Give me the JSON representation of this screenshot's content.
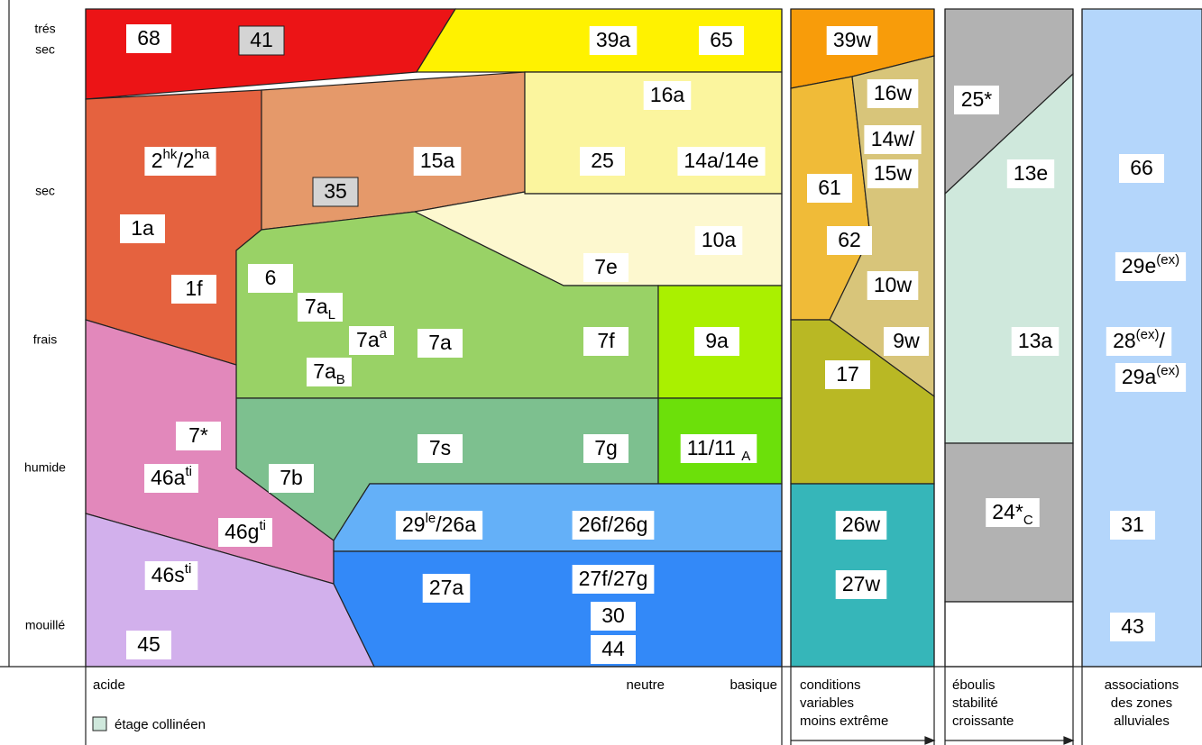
{
  "moisture_levels": [
    [
      "trés",
      "sec"
    ],
    [
      "sec"
    ],
    [
      "frais"
    ],
    [
      "humide"
    ],
    [
      "mouillé"
    ]
  ],
  "ph_axis": [
    "acide",
    "neutre",
    "basique"
  ],
  "panel_captions": [
    [
      "conditions",
      "variables",
      "moins extrême"
    ],
    [
      "éboulis",
      "stabilité",
      "croissante"
    ],
    [
      "associations",
      "des zones",
      "alluviales"
    ]
  ],
  "legend": "étage collinéen",
  "labels": [
    {
      "parts": [
        {
          "t": "68"
        }
      ]
    },
    {
      "parts": [
        {
          "t": "41"
        }
      ]
    },
    {
      "parts": [
        {
          "t": "39a"
        }
      ]
    },
    {
      "parts": [
        {
          "t": "65"
        }
      ]
    },
    {
      "parts": [
        {
          "t": "16a"
        }
      ]
    },
    {
      "parts": [
        {
          "t": "2"
        },
        {
          "sup": "hk"
        },
        {
          "t": "/2"
        },
        {
          "sup": "ha"
        }
      ]
    },
    {
      "parts": [
        {
          "t": "15a"
        }
      ]
    },
    {
      "parts": [
        {
          "t": "25"
        }
      ]
    },
    {
      "parts": [
        {
          "t": "14a/14e"
        }
      ]
    },
    {
      "parts": [
        {
          "t": "35"
        }
      ]
    },
    {
      "parts": [
        {
          "t": "1a"
        }
      ]
    },
    {
      "parts": [
        {
          "t": "10a"
        }
      ]
    },
    {
      "parts": [
        {
          "t": "7e"
        }
      ]
    },
    {
      "parts": [
        {
          "t": "6"
        }
      ]
    },
    {
      "parts": [
        {
          "t": "1f"
        }
      ]
    },
    {
      "parts": [
        {
          "t": "7a"
        },
        {
          "sub": "L"
        }
      ]
    },
    {
      "parts": [
        {
          "t": "7a"
        },
        {
          "sup": "a"
        }
      ]
    },
    {
      "parts": [
        {
          "t": "7a"
        }
      ]
    },
    {
      "parts": [
        {
          "t": "7f"
        }
      ]
    },
    {
      "parts": [
        {
          "t": "9a"
        }
      ]
    },
    {
      "parts": [
        {
          "t": "7a"
        },
        {
          "sub": "B"
        }
      ]
    },
    {
      "parts": [
        {
          "t": "7*"
        }
      ]
    },
    {
      "parts": [
        {
          "t": "7s"
        }
      ]
    },
    {
      "parts": [
        {
          "t": "7g"
        }
      ]
    },
    {
      "parts": [
        {
          "t": "11/11 "
        },
        {
          "sub": "A"
        }
      ]
    },
    {
      "parts": [
        {
          "t": "7b"
        }
      ]
    },
    {
      "parts": [
        {
          "t": "46a"
        },
        {
          "sup": "ti"
        }
      ]
    },
    {
      "parts": [
        {
          "t": "29"
        },
        {
          "sup": "le"
        },
        {
          "t": "/26a"
        }
      ]
    },
    {
      "parts": [
        {
          "t": "26f/26g"
        }
      ]
    },
    {
      "parts": [
        {
          "t": "46g"
        },
        {
          "sup": "ti"
        }
      ]
    },
    {
      "parts": [
        {
          "t": "46s"
        },
        {
          "sup": "ti"
        }
      ]
    },
    {
      "parts": [
        {
          "t": "27a"
        }
      ]
    },
    {
      "parts": [
        {
          "t": "27f/27g"
        }
      ]
    },
    {
      "parts": [
        {
          "t": "30"
        }
      ]
    },
    {
      "parts": [
        {
          "t": "44"
        }
      ]
    },
    {
      "parts": [
        {
          "t": "45"
        }
      ]
    },
    {
      "parts": [
        {
          "t": "39w"
        }
      ]
    },
    {
      "parts": [
        {
          "t": "16w"
        }
      ]
    },
    {
      "parts": [
        {
          "t": "14w/"
        }
      ]
    },
    {
      "parts": [
        {
          "t": "15w"
        }
      ]
    },
    {
      "parts": [
        {
          "t": "61"
        }
      ]
    },
    {
      "parts": [
        {
          "t": "62"
        }
      ]
    },
    {
      "parts": [
        {
          "t": "10w"
        }
      ]
    },
    {
      "parts": [
        {
          "t": "9w"
        }
      ]
    },
    {
      "parts": [
        {
          "t": "17"
        }
      ]
    },
    {
      "parts": [
        {
          "t": "26w"
        }
      ]
    },
    {
      "parts": [
        {
          "t": "27w"
        }
      ]
    },
    {
      "parts": [
        {
          "t": "25*"
        }
      ]
    },
    {
      "parts": [
        {
          "t": "13e"
        }
      ]
    },
    {
      "parts": [
        {
          "t": "13a"
        }
      ]
    },
    {
      "parts": [
        {
          "t": "24*"
        },
        {
          "sub": "C"
        }
      ]
    },
    {
      "parts": [
        {
          "t": "66"
        }
      ]
    },
    {
      "parts": [
        {
          "t": "29e"
        },
        {
          "sup": "(ex)"
        }
      ]
    },
    {
      "parts": [
        {
          "t": "28"
        },
        {
          "sup": "(ex)"
        },
        {
          "t": "/"
        }
      ]
    },
    {
      "parts": [
        {
          "t": "29a"
        },
        {
          "sup": "(ex)"
        }
      ]
    },
    {
      "parts": [
        {
          "t": "31"
        }
      ]
    },
    {
      "parts": [
        {
          "t": "43"
        }
      ]
    }
  ]
}
